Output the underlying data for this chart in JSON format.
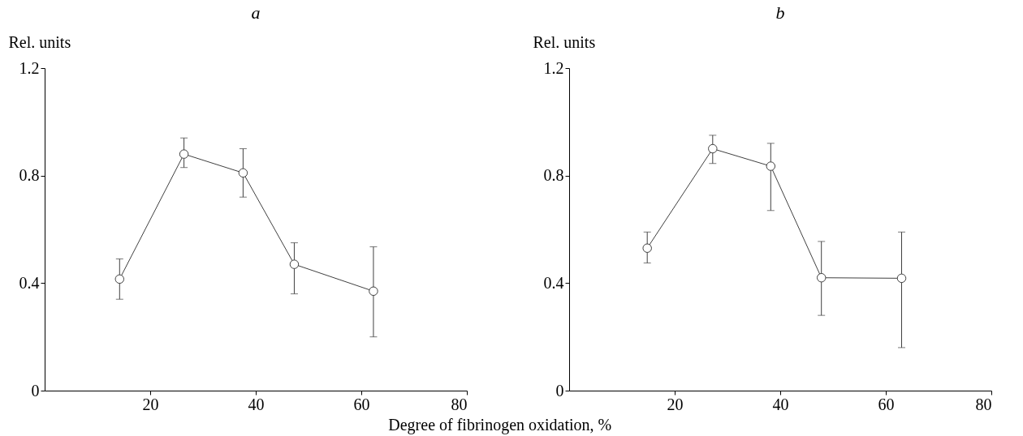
{
  "chart_data": [
    {
      "type": "line",
      "title": "a",
      "ylabel": "Rel. units",
      "xlabel": "Degree of fibrinogen oxidation, %",
      "x": [
        14.2,
        26.4,
        37.6,
        47.3,
        62.3
      ],
      "series": [
        {
          "color": "#404040",
          "values": [
            0.415,
            0.88,
            0.81,
            0.47,
            0.37
          ],
          "errors": [
            [
              0.34,
              0.49
            ],
            [
              0.83,
              0.94
            ],
            [
              0.72,
              0.9
            ],
            [
              0.36,
              0.55
            ],
            [
              0.2,
              0.535
            ]
          ]
        }
      ],
      "xlim": [
        0,
        80
      ],
      "xticks": [
        20,
        40,
        60,
        80
      ],
      "ylim": [
        0,
        1.2
      ],
      "yticks": [
        0,
        0.4,
        0.8,
        1.2
      ],
      "marker": "circle",
      "line_style": "solid",
      "grid": false
    },
    {
      "type": "line",
      "title": "b",
      "ylabel": "Rel. units",
      "x": [
        14.8,
        27.2,
        38.2,
        47.8,
        63
      ],
      "series": [
        {
          "color": "#404040",
          "values": [
            0.53,
            0.9,
            0.835,
            0.42,
            0.418
          ],
          "errors": [
            [
              0.475,
              0.59
            ],
            [
              0.845,
              0.95
            ],
            [
              0.67,
              0.92
            ],
            [
              0.28,
              0.555
            ],
            [
              0.16,
              0.59
            ]
          ]
        }
      ],
      "xlim": [
        0,
        80
      ],
      "xticks": [
        20,
        40,
        60,
        80
      ],
      "ylim": [
        0,
        1.2
      ],
      "yticks": [
        0,
        0.4,
        0.8,
        1.2
      ],
      "marker": "circle",
      "line_style": "solid",
      "grid": false
    }
  ]
}
